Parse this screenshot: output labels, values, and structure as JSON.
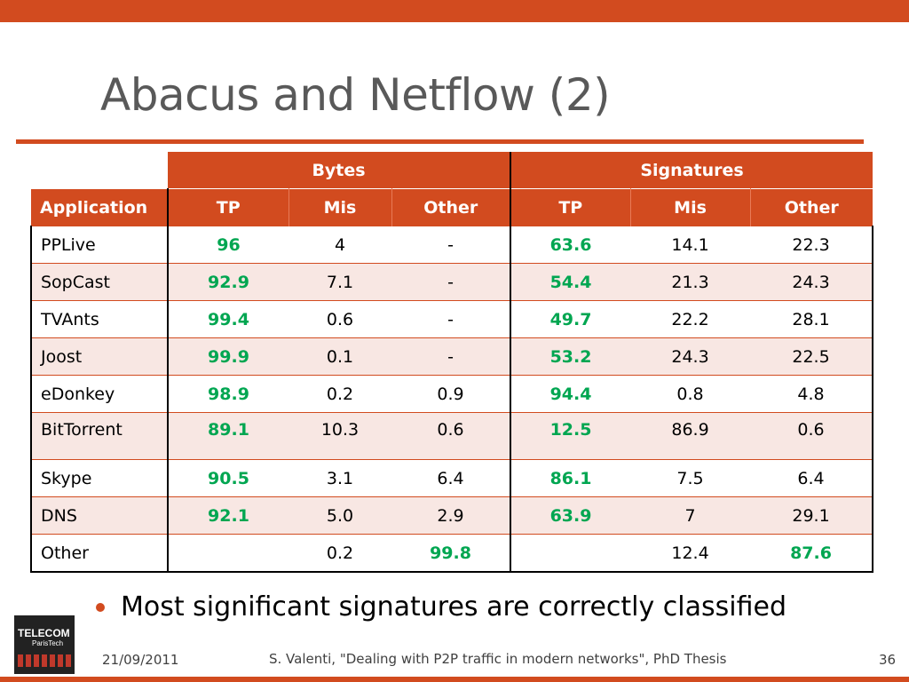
{
  "title": "Abacus and Netflow (2)",
  "table": {
    "group_headers": [
      "Bytes",
      "Signatures"
    ],
    "col_headers": [
      "Application",
      "TP",
      "Mis",
      "Other",
      "TP",
      "Mis",
      "Other"
    ],
    "rows": [
      {
        "app": "PPLive",
        "b_tp": "96",
        "b_mis": "4",
        "b_other": "-",
        "s_tp": "63.6",
        "s_mis": "14.1",
        "s_other": "22.3"
      },
      {
        "app": "SopCast",
        "b_tp": "92.9",
        "b_mis": "7.1",
        "b_other": "-",
        "s_tp": "54.4",
        "s_mis": "21.3",
        "s_other": "24.3"
      },
      {
        "app": "TVAnts",
        "b_tp": "99.4",
        "b_mis": "0.6",
        "b_other": "-",
        "s_tp": "49.7",
        "s_mis": "22.2",
        "s_other": "28.1"
      },
      {
        "app": "Joost",
        "b_tp": "99.9",
        "b_mis": "0.1",
        "b_other": "-",
        "s_tp": "53.2",
        "s_mis": "24.3",
        "s_other": "22.5"
      },
      {
        "app": "eDonkey",
        "b_tp": "98.9",
        "b_mis": "0.2",
        "b_other": "0.9",
        "s_tp": "94.4",
        "s_mis": "0.8",
        "s_other": "4.8"
      },
      {
        "app": "BitTorrent",
        "b_tp": "89.1",
        "b_mis": "10.3",
        "b_other": "0.6",
        "s_tp": "12.5",
        "s_mis": "86.9",
        "s_other": "0.6"
      },
      {
        "app": "Skype",
        "b_tp": "90.5",
        "b_mis": "3.1",
        "b_other": "6.4",
        "s_tp": "86.1",
        "s_mis": "7.5",
        "s_other": "6.4"
      },
      {
        "app": "DNS",
        "b_tp": "92.1",
        "b_mis": "5.0",
        "b_other": "2.9",
        "s_tp": "63.9",
        "s_mis": "7",
        "s_other": "29.1"
      },
      {
        "app": "Other",
        "b_tp": "",
        "b_mis": "0.2",
        "b_other": "99.8",
        "s_tp": "",
        "s_mis": "12.4",
        "s_other": "87.6"
      }
    ]
  },
  "bullet": "Most significant signatures are correctly classified",
  "logo": {
    "line1": "TELECOM",
    "line2": "ParisTech"
  },
  "footer": {
    "date": "21/09/2011",
    "citation": "S. Valenti, \"Dealing with P2P traffic in modern networks\", PhD Thesis",
    "page": "36"
  },
  "colors": {
    "accent": "#d24b1f",
    "highlight": "#00a651",
    "row_alt": "#f8e7e3"
  }
}
